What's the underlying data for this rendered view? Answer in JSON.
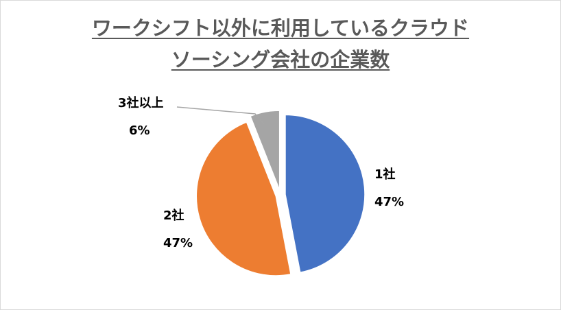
{
  "chart_data": {
    "type": "pie",
    "title_line1": "ワークシフト以外に利用しているクラウド",
    "title_line2": "ソーシング会社の企業数",
    "categories": [
      "1社",
      "2社",
      "3社以上"
    ],
    "values": [
      47,
      47,
      6
    ],
    "value_labels": [
      "47%",
      "47%",
      "6%"
    ],
    "colors": [
      "#4472c4",
      "#ed7d31",
      "#a5a5a5"
    ],
    "legend": "none",
    "exploded": true
  }
}
